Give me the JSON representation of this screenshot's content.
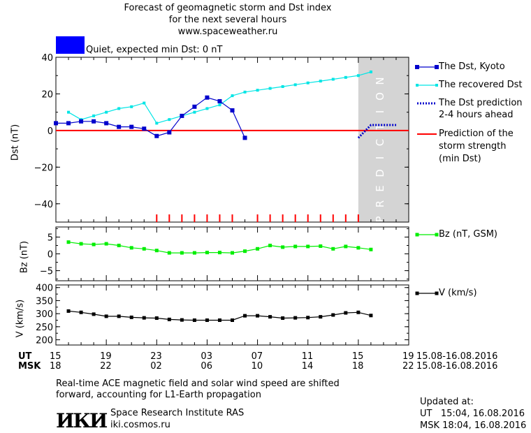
{
  "header": {
    "line1": "Forecast of geomagnetic storm and Dst index",
    "line2": "for the next several hours",
    "line3": "www.spaceweather.ru"
  },
  "status": {
    "label": "Quiet, expected min Dst: 0 nT",
    "color": "#0000ff"
  },
  "prediction_band": {
    "label": "PREDICTION",
    "color": "#d4d4d4"
  },
  "legend": {
    "dst_kyoto": "The Dst, Kyoto",
    "recovered": "The recovered Dst",
    "dst_pred_1": "The Dst prediction",
    "dst_pred_2": "2-4 hours ahead",
    "min_pred_1": "Prediction of the",
    "min_pred_2": "storm strength",
    "min_pred_3": "(min Dst)",
    "bz": "Bz (nT, GSM)",
    "v": "V (km/s)"
  },
  "colors": {
    "dst": "#0000cc",
    "recovered": "#00e5e5",
    "prediction": "#0000cc",
    "min_dst": "#ff0000",
    "bz": "#00ee00",
    "v": "#000000",
    "marker": "#ff0000"
  },
  "x_axis": {
    "ut_label": "UT",
    "msk_label": "MSK",
    "ut_ticks": [
      "15",
      "19",
      "23",
      "03",
      "07",
      "11",
      "15",
      "19"
    ],
    "msk_ticks": [
      "18",
      "22",
      "02",
      "06",
      "10",
      "14",
      "18",
      "22"
    ],
    "ut_range": "15.08-16.08.2016",
    "msk_range": "15.08-16.08.2016"
  },
  "chart_data": [
    {
      "type": "line",
      "x_unit": "hours since 15:00 UT 15.08.2016",
      "xlim": [
        0,
        28
      ],
      "ylabel": "Dst (nT)",
      "ylim": [
        -50,
        40
      ],
      "y_ticks": [
        "40",
        "20",
        "0",
        "−20",
        "−40"
      ],
      "prediction_start_x": 24,
      "min_dst_level": 0,
      "series": [
        {
          "name": "The Dst, Kyoto",
          "x": [
            0,
            1,
            2,
            3,
            4,
            5,
            6,
            7,
            8,
            9,
            10,
            11,
            12,
            13,
            14,
            15
          ],
          "values": [
            4,
            4,
            5,
            5,
            4,
            2,
            2,
            1,
            -3,
            -1,
            8,
            13,
            18,
            16,
            11,
            -4
          ]
        },
        {
          "name": "The recovered Dst",
          "x": [
            1,
            2,
            3,
            4,
            5,
            6,
            7,
            8,
            9,
            10,
            11,
            12,
            13,
            14,
            15,
            16,
            17,
            18,
            19,
            20,
            21,
            22,
            23,
            24,
            25
          ],
          "values": [
            10,
            6,
            8,
            10,
            12,
            13,
            15,
            4,
            6,
            8,
            10,
            12,
            14,
            19,
            21,
            22,
            23,
            24,
            25,
            26,
            27,
            28,
            29,
            30,
            32
          ]
        },
        {
          "name": "The Dst prediction 2-4 hours ahead",
          "x": [
            24,
            25,
            26,
            27
          ],
          "values": [
            -4,
            3,
            3,
            3
          ]
        }
      ],
      "storm_markers_x": [
        8,
        9,
        10,
        11,
        12,
        13,
        14,
        16,
        17,
        18,
        19,
        20,
        21,
        22,
        23,
        24
      ]
    },
    {
      "type": "line",
      "ylabel": "Bz (nT)",
      "ylim": [
        -8,
        8
      ],
      "y_ticks": [
        "5",
        "0",
        "−5"
      ],
      "series": [
        {
          "name": "Bz (nT, GSM)",
          "x": [
            1,
            2,
            3,
            4,
            5,
            6,
            7,
            8,
            9,
            10,
            11,
            12,
            13,
            14,
            15,
            16,
            17,
            18,
            19,
            20,
            21,
            22,
            23,
            24,
            25
          ],
          "values": [
            3.5,
            3,
            2.8,
            3,
            2.5,
            1.8,
            1.5,
            1,
            0.3,
            0.3,
            0.3,
            0.4,
            0.4,
            0.3,
            0.8,
            1.5,
            2.5,
            2,
            2.2,
            2.2,
            2.3,
            1.5,
            2.2,
            1.8,
            1.3
          ]
        }
      ]
    },
    {
      "type": "line",
      "ylabel": "V (km/s)",
      "ylim": [
        180,
        410
      ],
      "y_ticks": [
        "400",
        "350",
        "300",
        "250",
        "200"
      ],
      "series": [
        {
          "name": "V (km/s)",
          "x": [
            1,
            2,
            3,
            4,
            5,
            6,
            7,
            8,
            9,
            10,
            11,
            12,
            13,
            14,
            15,
            16,
            17,
            18,
            19,
            20,
            21,
            22,
            23,
            24,
            25
          ],
          "values": [
            310,
            305,
            298,
            290,
            290,
            286,
            284,
            283,
            278,
            276,
            275,
            275,
            275,
            275,
            292,
            292,
            288,
            283,
            284,
            285,
            288,
            295,
            303,
            305,
            293
          ]
        }
      ]
    }
  ],
  "footer": {
    "note1": "Real-time ACE magnetic field and solar wind speed are shifted",
    "note2": "forward, accounting for L1-Earth propagation",
    "logo": "ИКИ",
    "institute": "Space Research Institute RAS",
    "site": "iki.cosmos.ru",
    "updated_label": "Updated at:",
    "updated_ut": "UT   15:04, 16.08.2016",
    "updated_msk": "MSK 18:04, 16.08.2016"
  }
}
